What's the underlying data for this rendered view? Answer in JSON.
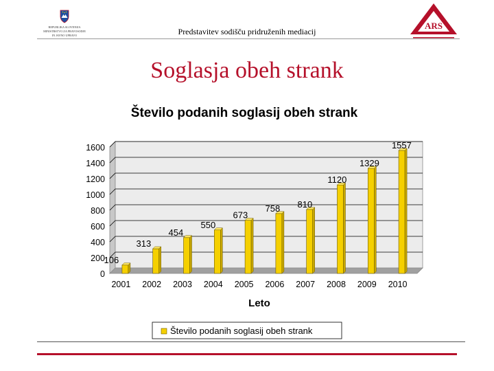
{
  "header": {
    "left_logo_icon": "slovenia-coat-of-arms-icon",
    "left_logo_lines": [
      "REPUBLIKA SLOVENIJA",
      "MINISTRSTVO ZA PRAVOSODJE",
      "IN JAVNO UPRAVO"
    ],
    "subtitle": "Predstavitev sodišču pridruženih mediacij",
    "right_logo_icon": "ars-triangle-logo-icon",
    "right_logo_text": "ARS"
  },
  "slide": {
    "title": "Soglasja obeh strank"
  },
  "chart_data": {
    "type": "bar",
    "title": "Število podanih soglasij obeh strank",
    "xlabel": "Leto",
    "ylabel": "",
    "categories": [
      "2001",
      "2002",
      "2003",
      "2004",
      "2005",
      "2006",
      "2007",
      "2008",
      "2009",
      "2010"
    ],
    "series": [
      {
        "name": "Število podanih soglasij obeh strank",
        "values": [
          106,
          313,
          454,
          550,
          673,
          758,
          810,
          1120,
          1329,
          1557
        ]
      }
    ],
    "data_labels": [
      "106",
      "313",
      "454",
      "550",
      "673",
      "758",
      "810",
      "1120",
      "1329",
      "1557"
    ],
    "ylim": [
      0,
      1600
    ],
    "yticks": [
      "0",
      "200",
      "400",
      "600",
      "800",
      "1000",
      "1200",
      "1400",
      "1600"
    ],
    "grid": true,
    "legend": "bottom",
    "bar_color": "#f5d000",
    "title_color": "#000000"
  },
  "colors": {
    "accent": "#b5102a"
  }
}
